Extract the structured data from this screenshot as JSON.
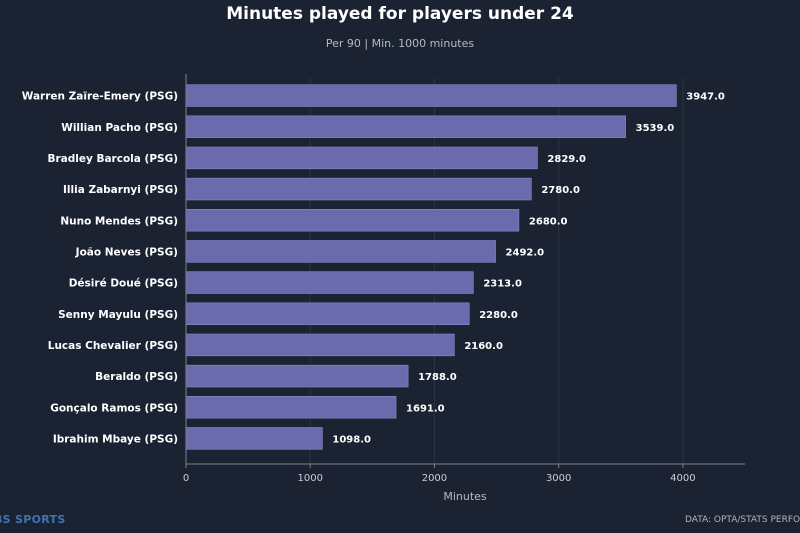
{
  "chart_data": {
    "type": "bar",
    "orientation": "horizontal",
    "title": "Minutes played for players under 24",
    "subtitle": "Per 90  |  Min. 1000 minutes",
    "xlabel": "Minutes",
    "ylabel": "",
    "xlim": [
      0,
      4500
    ],
    "xticks": [
      0,
      1000,
      2000,
      3000,
      4000
    ],
    "categories": [
      "Warren Zaïre-Emery (PSG)",
      "Willian Pacho (PSG)",
      "Bradley Barcola (PSG)",
      "Illia Zabarnyi (PSG)",
      "Nuno Mendes (PSG)",
      "João Neves (PSG)",
      "Désiré Doué (PSG)",
      "Senny Mayulu (PSG)",
      "Lucas Chevalier (PSG)",
      "Beraldo (PSG)",
      "Gonçalo Ramos (PSG)",
      "Ibrahim Mbaye (PSG)"
    ],
    "values": [
      3947.0,
      3539.0,
      2829.0,
      2780.0,
      2680.0,
      2492.0,
      2313.0,
      2280.0,
      2160.0,
      1788.0,
      1691.0,
      1098.0
    ],
    "value_labels": [
      "3947.0",
      "3539.0",
      "2829.0",
      "2780.0",
      "2680.0",
      "2492.0",
      "2313.0",
      "2280.0",
      "2160.0",
      "1788.0",
      "1691.0",
      "1098.0"
    ],
    "grid": true,
    "colors": {
      "bar": "#6b6aad",
      "bar_edge": "#8a89c8",
      "background": "#1b2333",
      "grid": "#2b3446",
      "axis": "#7a8294",
      "tick_label": "#c9ced8"
    }
  },
  "footer": {
    "left": "BS SPORTS",
    "right": "DATA: OPTA/STATS PERFO"
  }
}
